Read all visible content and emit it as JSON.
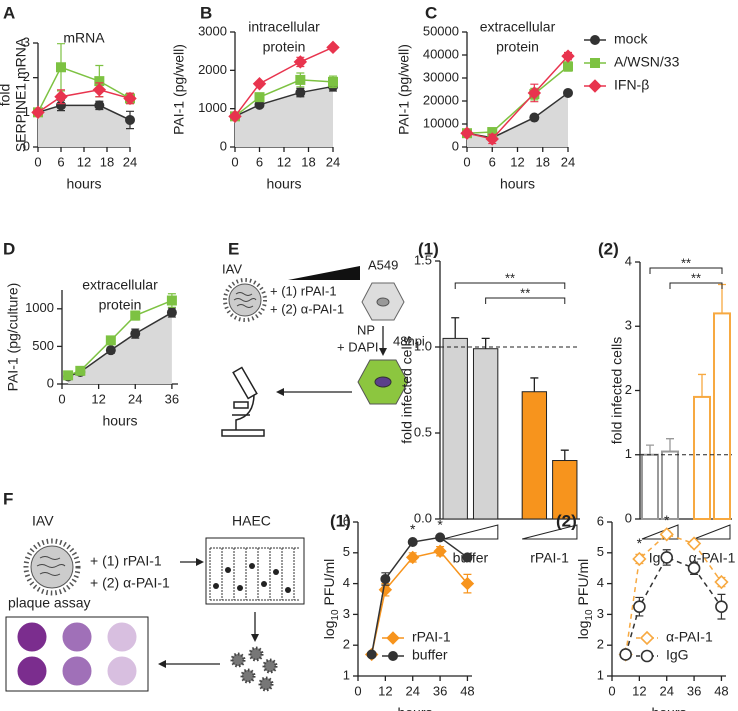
{
  "diagrams": {
    "E": {
      "letter": "E",
      "virus": "IAV",
      "cells": "A549",
      "treatment_1": "+ (1) rPAI-1",
      "treatment_2": "+ (2) α-PAI-1",
      "stain_1": "NP",
      "stain_2": "+ DAPI",
      "time": "48hpi"
    },
    "F": {
      "letter": "F",
      "virus": "IAV",
      "cells": "HAEC",
      "treatment_1": "+ (1) rPAI-1",
      "treatment_2": "+ (2) α-PAI-1",
      "assay": "plaque assay"
    }
  },
  "chart_data": [
    {
      "type": "line",
      "panel": "A",
      "title": [
        "mRNA"
      ],
      "ylabel": [
        "fold",
        "SERPINE1 mRNA"
      ],
      "xlabel": "hours",
      "x": [
        0,
        6,
        16,
        24
      ],
      "xlim": [
        0,
        24
      ],
      "xticks": [
        0,
        6,
        12,
        18,
        24
      ],
      "ylim": [
        0,
        3
      ],
      "yticks": [
        0,
        1,
        2,
        3
      ],
      "series": [
        {
          "color": "#333333",
          "marker": "circle",
          "fill_under": "#d9d9d9",
          "values": [
            1,
            1.2,
            1.2,
            0.78
          ],
          "errors": [
            0.05,
            0.15,
            0.12,
            0.25
          ]
        },
        {
          "color": "#7dc242",
          "marker": "square",
          "values": [
            1,
            2.3,
            1.9,
            1.4
          ],
          "errors": [
            0.05,
            0.68,
            0.45,
            0.15
          ]
        },
        {
          "color": "#e8344e",
          "marker": "diamond",
          "values": [
            1,
            1.45,
            1.65,
            1.4
          ],
          "errors": [
            0.05,
            0.2,
            0.2,
            0.15
          ]
        }
      ]
    },
    {
      "type": "line",
      "panel": "B",
      "title": [
        "intracellular",
        "protein"
      ],
      "ylabel": [
        "PAI-1 (pg/well)"
      ],
      "xlabel": "hours",
      "x": [
        0,
        6,
        16,
        24
      ],
      "xlim": [
        0,
        24
      ],
      "xticks": [
        0,
        6,
        12,
        18,
        24
      ],
      "ylim": [
        0,
        3000
      ],
      "yticks": [
        0,
        1000,
        2000,
        3000
      ],
      "series": [
        {
          "color": "#333333",
          "marker": "circle",
          "fill_under": "#d9d9d9",
          "values": [
            800,
            1100,
            1420,
            1580
          ],
          "errors": [
            40,
            60,
            110,
            120
          ]
        },
        {
          "color": "#7dc242",
          "marker": "square",
          "values": [
            800,
            1300,
            1750,
            1700
          ],
          "errors": [
            40,
            90,
            180,
            150
          ]
        },
        {
          "color": "#e8344e",
          "marker": "diamond",
          "values": [
            800,
            1650,
            2220,
            2600
          ],
          "errors": [
            40,
            50,
            120,
            40
          ]
        }
      ]
    },
    {
      "type": "line",
      "panel": "C",
      "title": [
        "extracellular",
        "protein"
      ],
      "ylabel": [
        "PAI-1 (pg/well)"
      ],
      "xlabel": "hours",
      "x": [
        0,
        6,
        16,
        24
      ],
      "xlim": [
        0,
        24
      ],
      "xticks": [
        0,
        6,
        12,
        18,
        24
      ],
      "ylim": [
        0,
        50000
      ],
      "yticks": [
        0,
        10000,
        20000,
        30000,
        40000,
        50000
      ],
      "legend": "right",
      "series": [
        {
          "name": "mock",
          "color": "#333333",
          "marker": "circle",
          "fill_under": "#d9d9d9",
          "values": [
            6000,
            4000,
            12800,
            23500
          ],
          "errors": [
            500,
            300,
            500,
            500
          ]
        },
        {
          "name": "A/WSN/33",
          "color": "#7dc242",
          "marker": "square",
          "values": [
            6000,
            6500,
            23000,
            35000
          ],
          "errors": [
            500,
            800,
            2500,
            2000
          ]
        },
        {
          "name": "IFN-β",
          "color": "#e8344e",
          "marker": "diamond",
          "values": [
            6000,
            3500,
            23500,
            39500
          ],
          "errors": [
            500,
            2000,
            3800,
            1600
          ]
        }
      ]
    },
    {
      "type": "line",
      "panel": "D",
      "title": [
        "extracellular",
        "protein"
      ],
      "ylabel": [
        "PAI-1 (pg/culture)"
      ],
      "xlabel": "hours",
      "x": [
        2,
        6,
        16,
        24,
        36
      ],
      "xlim": [
        0,
        38
      ],
      "xticks": [
        0,
        12,
        24,
        36
      ],
      "ylim": [
        0,
        1250
      ],
      "yticks": [
        0,
        500,
        1000
      ],
      "series": [
        {
          "color": "#333333",
          "marker": "circle",
          "fill_under": "#d9d9d9",
          "values": [
            100,
            160,
            450,
            670,
            950
          ],
          "errors": [
            20,
            20,
            40,
            60,
            60
          ]
        },
        {
          "color": "#7dc242",
          "marker": "square",
          "values": [
            115,
            175,
            580,
            910,
            1110
          ],
          "errors": [
            20,
            20,
            40,
            60,
            90
          ]
        }
      ]
    },
    {
      "type": "bar",
      "panel": "(1)",
      "ylabel": [
        "fold infected cells"
      ],
      "ylim": [
        0,
        1.5
      ],
      "yticks": [
        {
          "value": 0,
          "label": "0.0"
        },
        0.5,
        {
          "value": 1,
          "label": "1.0"
        },
        1.5
      ],
      "categories": [
        null,
        null,
        null,
        null
      ],
      "groups": [
        "buffer",
        "rPAI-1"
      ],
      "values": [
        1.05,
        0.99,
        0.74,
        0.34
      ],
      "errors": [
        0.12,
        0.06,
        0.08,
        0.06
      ],
      "colors": [
        "#d3d3d3",
        "#d3d3d3",
        "#f7941d",
        "#f7941d"
      ],
      "filled": true,
      "hline": 1,
      "significance": [
        "**",
        "**"
      ]
    },
    {
      "type": "bar",
      "panel": "(2)",
      "ylabel": [
        "fold infected cells"
      ],
      "ylim": [
        0,
        4
      ],
      "yticks": [
        0,
        1,
        2,
        3,
        4
      ],
      "categories": [
        null,
        null,
        null,
        null
      ],
      "groups": [
        "IgG",
        "α-PAI-1"
      ],
      "values": [
        1,
        1.05,
        1.9,
        3.2
      ],
      "errors": [
        0.15,
        0.2,
        0.35,
        0.45
      ],
      "colors": [
        "#999999",
        "#999999",
        "#f7a941",
        "#f7a941"
      ],
      "filled": false,
      "hline": 1,
      "significance": [
        "**",
        "**"
      ]
    },
    {
      "type": "line",
      "panel": "(1)",
      "ylabel_parts": [
        "log",
        "10",
        "PFU/ml"
      ],
      "xlabel": "hours",
      "x": [
        6,
        12,
        24,
        36,
        48
      ],
      "xlim": [
        0,
        50
      ],
      "xticks": [
        0,
        12,
        24,
        36,
        48
      ],
      "ylim": [
        1,
        6
      ],
      "yticks": [
        1,
        2,
        3,
        4,
        5,
        6
      ],
      "legend": "lower right",
      "significance": [
        "*",
        "*"
      ],
      "series": [
        {
          "name": "rPAI-1",
          "color": "#f7941d",
          "marker": "diamond",
          "values": [
            1.7,
            3.8,
            4.85,
            5.05,
            4.0
          ],
          "errors": [
            0.05,
            0.2,
            0.15,
            0.15,
            0.3
          ]
        },
        {
          "name": "buffer",
          "color": "#333333",
          "marker": "circle",
          "values": [
            1.7,
            4.15,
            5.35,
            5.5,
            4.85
          ],
          "errors": [
            0.05,
            0.2,
            0.05,
            0.05,
            0.1
          ]
        }
      ]
    },
    {
      "type": "line",
      "panel": "(2)",
      "ylabel_parts": [
        "log",
        "10",
        "PFU/ml"
      ],
      "xlabel": "hours",
      "x": [
        6,
        12,
        24,
        36,
        48
      ],
      "xlim": [
        0,
        50
      ],
      "xticks": [
        0,
        12,
        24,
        36,
        48
      ],
      "ylim": [
        1,
        6
      ],
      "yticks": [
        1,
        2,
        3,
        4,
        5,
        6
      ],
      "legend": "lower right",
      "significance": [
        "*",
        "*"
      ],
      "dashed": true,
      "marker_fill": false,
      "series": [
        {
          "name": "α-PAI-1",
          "color": "#f7a941",
          "marker": "diamond",
          "values": [
            1.7,
            4.8,
            5.6,
            5.3,
            4.05
          ],
          "errors": [
            0.05,
            0.15,
            0.1,
            0.1,
            0.15
          ]
        },
        {
          "name": "IgG",
          "color": "#333333",
          "marker": "circle",
          "values": [
            1.7,
            3.25,
            4.85,
            4.5,
            3.25
          ],
          "errors": [
            0.05,
            0.3,
            0.25,
            0.2,
            0.4
          ]
        }
      ]
    }
  ]
}
